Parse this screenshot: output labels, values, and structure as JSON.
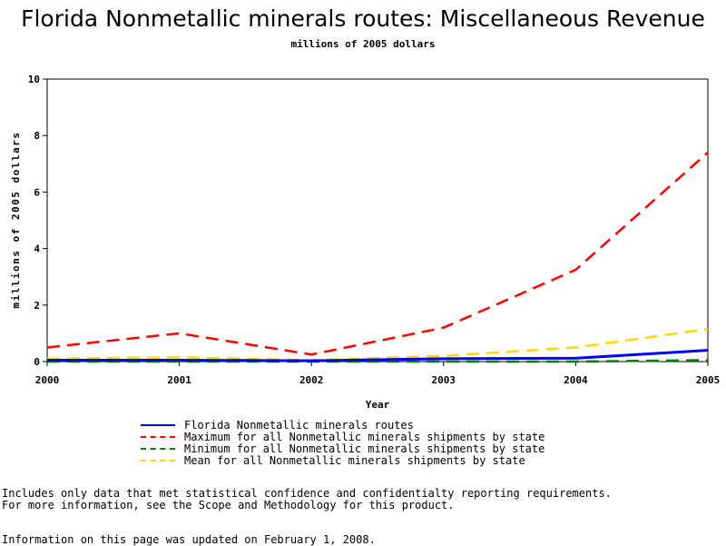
{
  "header": {
    "title": "Florida Nonmetallic minerals routes: Miscellaneous Revenue",
    "subtitle": "millions of 2005 dollars"
  },
  "chart_data": {
    "type": "line",
    "title": "Florida Nonmetallic minerals routes: Miscellaneous Revenue",
    "subtitle": "millions of 2005 dollars",
    "xlabel": "Year",
    "ylabel": "millions of 2005 dollars",
    "x": [
      2000,
      2001,
      2002,
      2003,
      2004,
      2005
    ],
    "xlim": [
      2000,
      2005
    ],
    "ylim": [
      0,
      10
    ],
    "yticks": [
      0,
      2,
      4,
      6,
      8,
      10
    ],
    "grid": false,
    "legend_position": "bottom",
    "series": [
      {
        "name": "Florida Nonmetallic minerals routes",
        "color": "#0000ff",
        "style": "solid",
        "values": [
          0.05,
          0.05,
          0.03,
          0.1,
          0.12,
          0.4
        ]
      },
      {
        "name": "Maximum for all Nonmetallic minerals shipments by state",
        "color": "#ff0000",
        "style": "dashed",
        "values": [
          0.5,
          1.0,
          0.25,
          1.2,
          3.25,
          7.4
        ]
      },
      {
        "name": "Minimum for all Nonmetallic minerals shipments by state",
        "color": "#008000",
        "style": "dashed",
        "values": [
          0.0,
          0.0,
          0.0,
          0.0,
          0.0,
          0.05
        ]
      },
      {
        "name": "Mean for all Nonmetallic minerals shipments by state",
        "color": "#ffd700",
        "style": "dashed",
        "values": [
          0.1,
          0.15,
          0.05,
          0.2,
          0.5,
          1.15
        ]
      }
    ]
  },
  "footer": {
    "note_line1": "Includes only data that met statistical confidence and confidentialty reporting requirements.",
    "note_line2": "For more information, see the Scope and Methodology for this product.",
    "updated": "Information on this page was updated on February 1, 2008."
  }
}
